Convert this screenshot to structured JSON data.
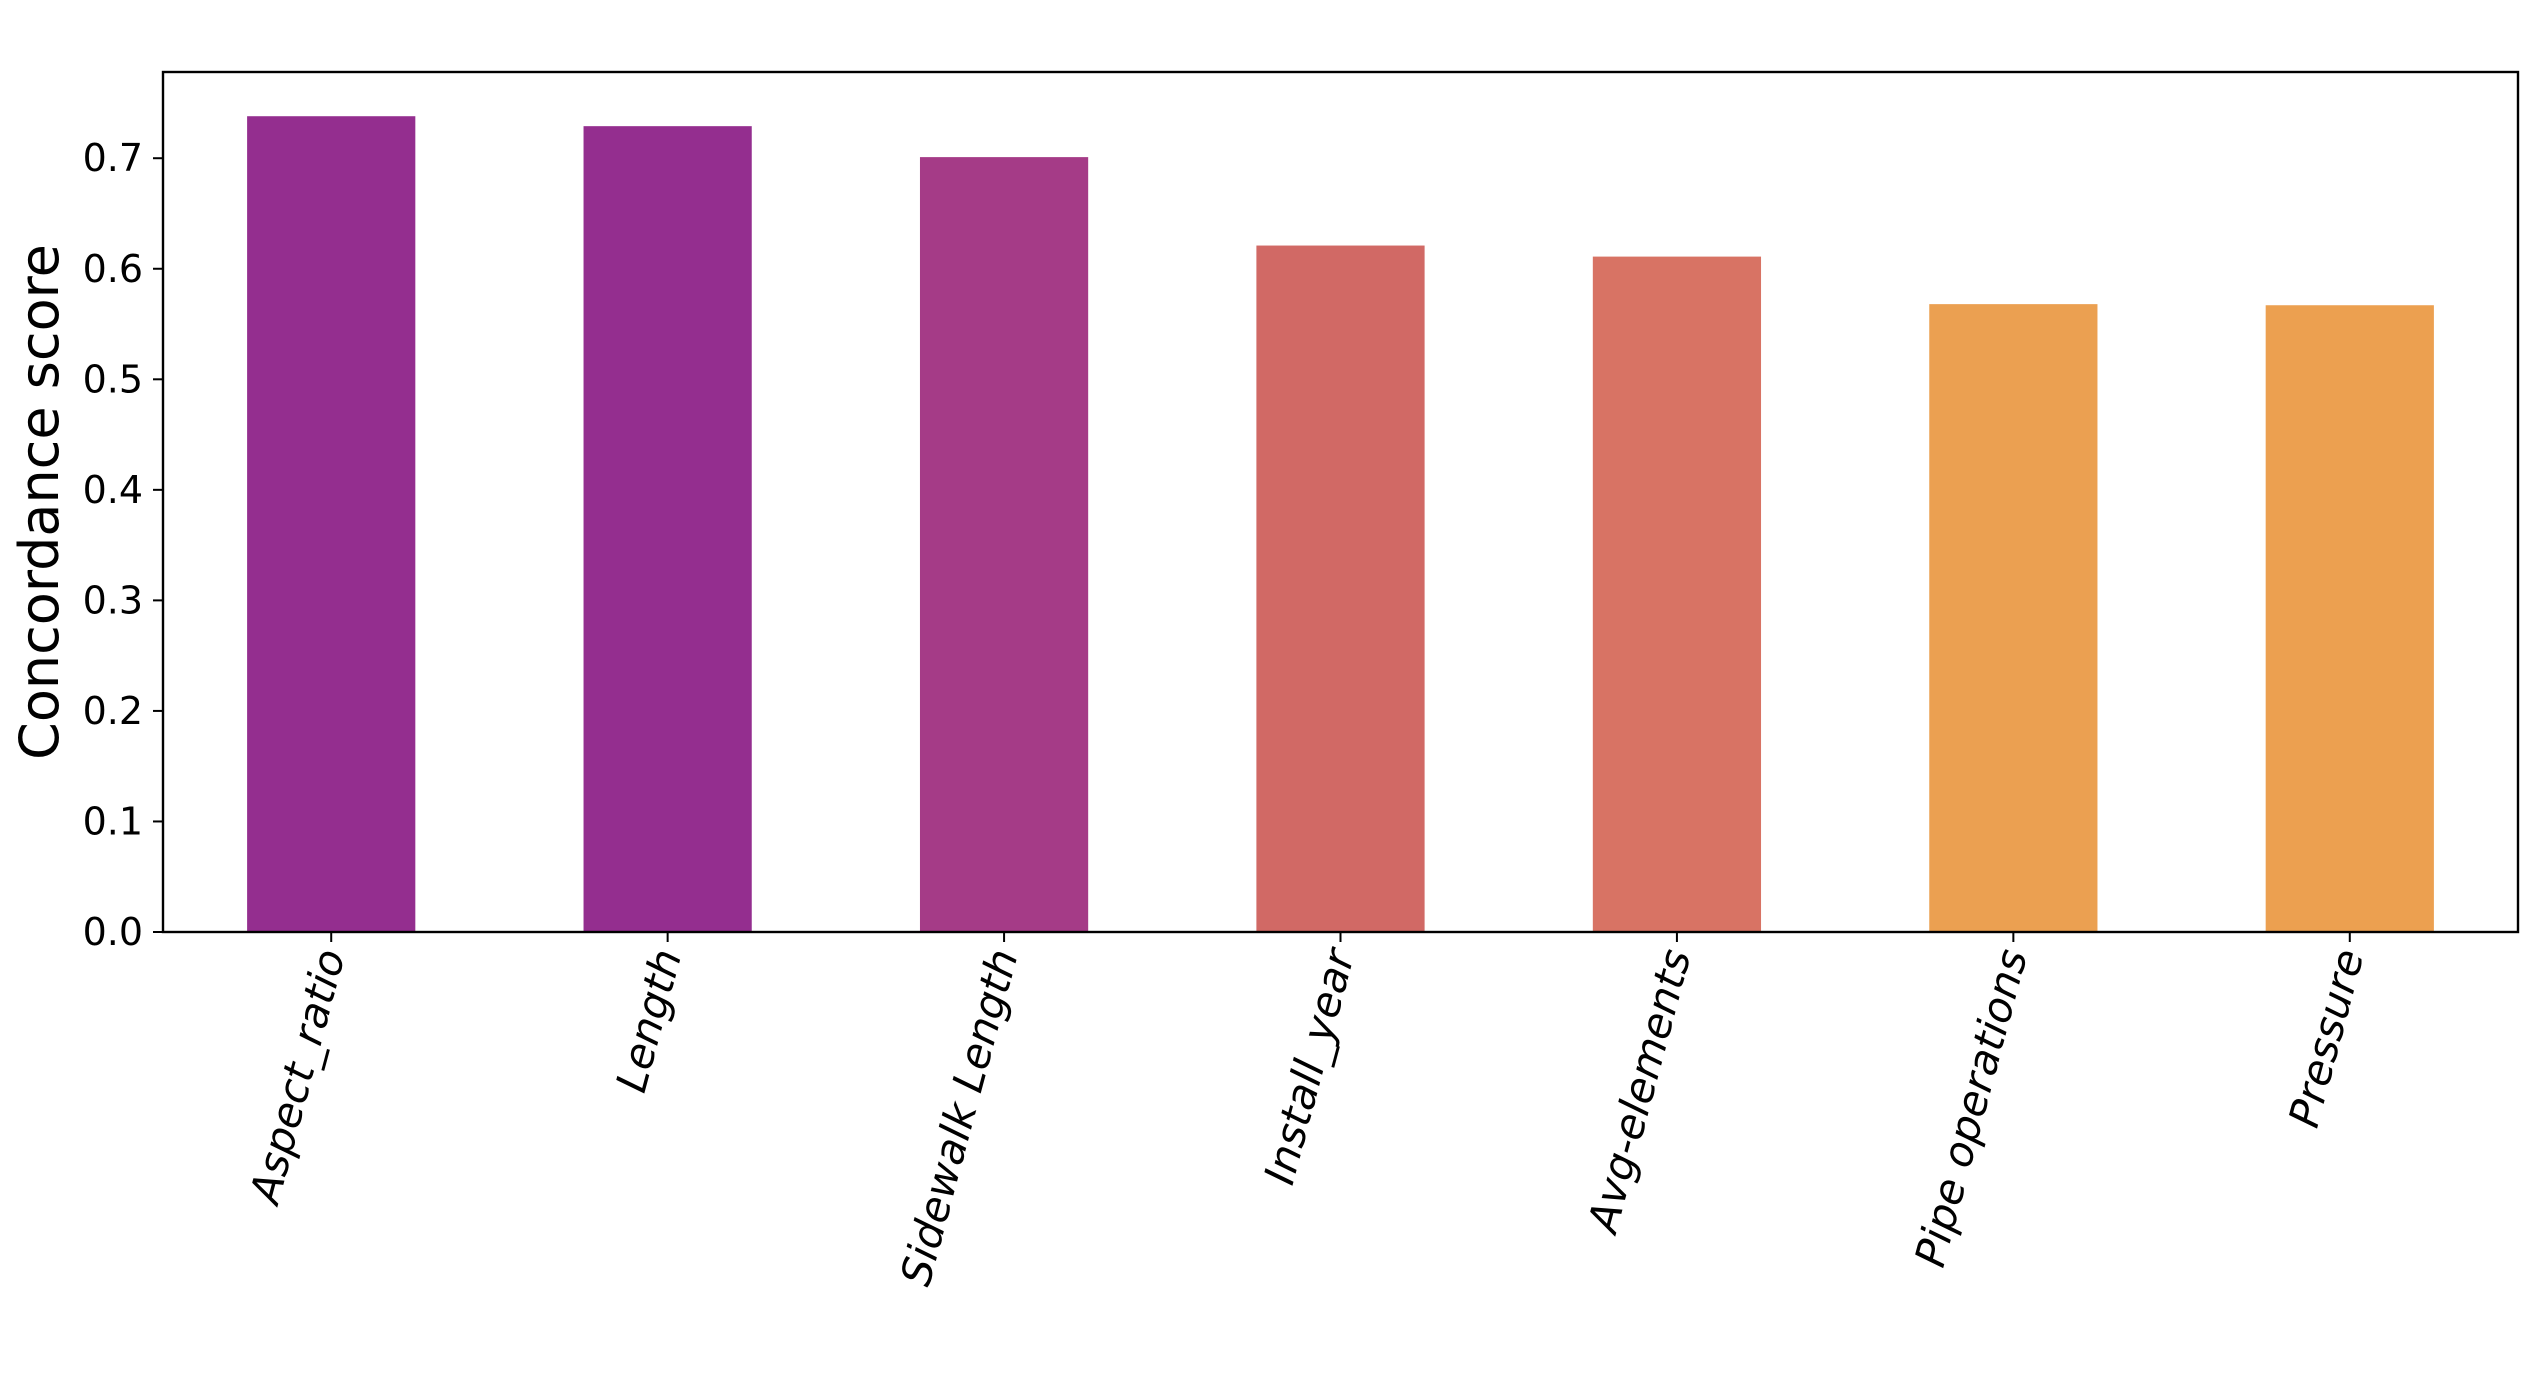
{
  "chart_data": {
    "type": "bar",
    "title": "",
    "xlabel": "",
    "ylabel": "Concordance score",
    "categories": [
      "Aspect_ratio",
      "Length",
      "Sidewalk Length",
      "Install_year",
      "Avg-elements",
      "Pipe operations",
      "Pressure"
    ],
    "values": [
      0.738,
      0.729,
      0.701,
      0.621,
      0.611,
      0.568,
      0.567
    ],
    "bar_colors": [
      "#942e8f",
      "#942e8f",
      "#a53b87",
      "#d16965",
      "#d87364",
      "#eba051",
      "#eca050"
    ],
    "ylim": [
      0,
      0.778
    ],
    "yticks": [
      0.0,
      0.1,
      0.2,
      0.3,
      0.4,
      0.5,
      0.6,
      0.7
    ],
    "ytick_labels": [
      "0.0",
      "0.1",
      "0.2",
      "0.3",
      "0.4",
      "0.5",
      "0.6",
      "0.7"
    ],
    "grid": false,
    "legend": "none"
  }
}
